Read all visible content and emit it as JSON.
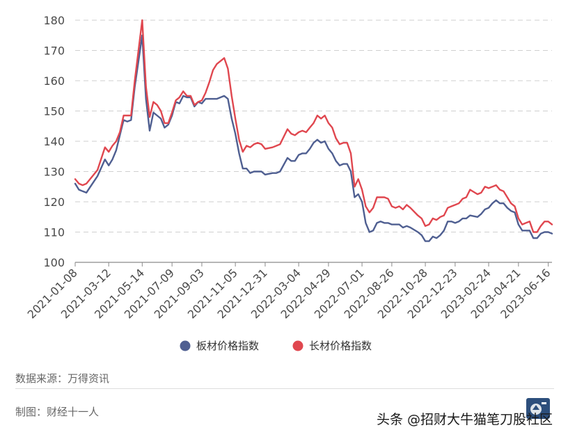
{
  "chart_data": {
    "type": "line",
    "title": "",
    "xlabel": "",
    "ylabel": "",
    "ylim": [
      100,
      180
    ],
    "yticks": [
      100,
      110,
      120,
      130,
      140,
      150,
      160,
      170,
      180
    ],
    "x_tick_labels": [
      "2021-01-08",
      "2021-03-12",
      "2021-05-14",
      "2021-07-09",
      "2021-09-03",
      "2021-11-05",
      "2021-12-31",
      "2022-03-04",
      "2022-04-29",
      "2022-07-01",
      "2022-08-26",
      "2022-10-28",
      "2022-12-23",
      "2023-02-24",
      "2023-04-21",
      "2023-06-16"
    ],
    "grid": "horizontal-dashed",
    "legend_position": "bottom",
    "colors": {
      "plate": "#4f5f91",
      "long": "#e0474f"
    },
    "series": [
      {
        "name": "板材价格指数",
        "color": "#4f5f91",
        "points": [
          [
            "2021-01-08",
            126.0
          ],
          [
            "2021-01-15",
            124.0
          ],
          [
            "2021-01-22",
            123.5
          ],
          [
            "2021-01-29",
            123.0
          ],
          [
            "2021-02-19",
            128.5
          ],
          [
            "2021-03-05",
            134.0
          ],
          [
            "2021-03-12",
            132.0
          ],
          [
            "2021-03-19",
            134.0
          ],
          [
            "2021-03-26",
            137.0
          ],
          [
            "2021-04-02",
            142.0
          ],
          [
            "2021-04-09",
            147.0
          ],
          [
            "2021-04-16",
            146.5
          ],
          [
            "2021-04-23",
            147.0
          ],
          [
            "2021-04-30",
            158.0
          ],
          [
            "2021-05-14",
            175.0
          ],
          [
            "2021-05-21",
            154.0
          ],
          [
            "2021-05-28",
            143.5
          ],
          [
            "2021-06-04",
            149.5
          ],
          [
            "2021-06-11",
            148.5
          ],
          [
            "2021-06-18",
            147.5
          ],
          [
            "2021-06-25",
            144.5
          ],
          [
            "2021-07-02",
            145.5
          ],
          [
            "2021-07-09",
            148.5
          ],
          [
            "2021-07-16",
            153.0
          ],
          [
            "2021-07-23",
            152.5
          ],
          [
            "2021-07-30",
            155.0
          ],
          [
            "2021-08-06",
            154.5
          ],
          [
            "2021-08-13",
            154.5
          ],
          [
            "2021-08-20",
            151.5
          ],
          [
            "2021-08-27",
            153.0
          ],
          [
            "2021-09-03",
            152.5
          ],
          [
            "2021-09-10",
            154.0
          ],
          [
            "2021-09-17",
            154.0
          ],
          [
            "2021-09-24",
            154.0
          ],
          [
            "2021-10-01",
            154.0
          ],
          [
            "2021-10-15",
            155.0
          ],
          [
            "2021-10-22",
            154.0
          ],
          [
            "2021-10-29",
            147.5
          ],
          [
            "2021-11-05",
            142.5
          ],
          [
            "2021-11-12",
            136.0
          ],
          [
            "2021-11-19",
            131.0
          ],
          [
            "2021-11-26",
            131.0
          ],
          [
            "2021-12-03",
            129.5
          ],
          [
            "2021-12-10",
            130.0
          ],
          [
            "2021-12-17",
            130.0
          ],
          [
            "2021-12-24",
            130.0
          ],
          [
            "2021-12-31",
            129.0
          ],
          [
            "2022-01-14",
            129.5
          ],
          [
            "2022-01-21",
            129.5
          ],
          [
            "2022-01-28",
            130.0
          ],
          [
            "2022-02-11",
            134.5
          ],
          [
            "2022-02-18",
            133.5
          ],
          [
            "2022-02-25",
            133.5
          ],
          [
            "2022-03-04",
            135.5
          ],
          [
            "2022-03-11",
            136.0
          ],
          [
            "2022-03-18",
            136.0
          ],
          [
            "2022-03-25",
            137.5
          ],
          [
            "2022-04-01",
            139.5
          ],
          [
            "2022-04-08",
            140.5
          ],
          [
            "2022-04-15",
            139.5
          ],
          [
            "2022-04-22",
            140.0
          ],
          [
            "2022-04-29",
            137.5
          ],
          [
            "2022-05-06",
            136.0
          ],
          [
            "2022-05-13",
            133.5
          ],
          [
            "2022-05-20",
            132.0
          ],
          [
            "2022-05-27",
            132.5
          ],
          [
            "2022-06-03",
            132.5
          ],
          [
            "2022-06-10",
            130.0
          ],
          [
            "2022-06-17",
            121.5
          ],
          [
            "2022-06-24",
            122.5
          ],
          [
            "2022-07-01",
            120.0
          ],
          [
            "2022-07-08",
            113.0
          ],
          [
            "2022-07-15",
            110.0
          ],
          [
            "2022-07-22",
            110.5
          ],
          [
            "2022-07-29",
            113.0
          ],
          [
            "2022-08-05",
            113.5
          ],
          [
            "2022-08-12",
            113.0
          ],
          [
            "2022-08-19",
            113.0
          ],
          [
            "2022-08-26",
            112.5
          ],
          [
            "2022-09-02",
            112.5
          ],
          [
            "2022-09-09",
            112.5
          ],
          [
            "2022-09-16",
            111.5
          ],
          [
            "2022-09-23",
            112.0
          ],
          [
            "2022-09-30",
            111.5
          ],
          [
            "2022-10-14",
            110.0
          ],
          [
            "2022-10-21",
            109.0
          ],
          [
            "2022-10-28",
            107.0
          ],
          [
            "2022-11-04",
            107.0
          ],
          [
            "2022-11-11",
            108.5
          ],
          [
            "2022-11-18",
            108.0
          ],
          [
            "2022-11-25",
            109.0
          ],
          [
            "2022-12-02",
            110.5
          ],
          [
            "2022-12-09",
            113.5
          ],
          [
            "2022-12-16",
            113.5
          ],
          [
            "2022-12-23",
            113.0
          ],
          [
            "2022-12-30",
            113.5
          ],
          [
            "2023-01-06",
            114.5
          ],
          [
            "2023-01-13",
            114.5
          ],
          [
            "2023-01-20",
            115.5
          ],
          [
            "2023-02-03",
            115.0
          ],
          [
            "2023-02-10",
            116.0
          ],
          [
            "2023-02-17",
            117.5
          ],
          [
            "2023-02-24",
            118.0
          ],
          [
            "2023-03-03",
            119.5
          ],
          [
            "2023-03-10",
            120.5
          ],
          [
            "2023-03-17",
            119.5
          ],
          [
            "2023-03-24",
            119.5
          ],
          [
            "2023-03-31",
            118.0
          ],
          [
            "2023-04-07",
            117.0
          ],
          [
            "2023-04-14",
            116.5
          ],
          [
            "2023-04-21",
            112.5
          ],
          [
            "2023-04-28",
            110.5
          ],
          [
            "2023-05-05",
            110.5
          ],
          [
            "2023-05-12",
            110.5
          ],
          [
            "2023-05-19",
            108.0
          ],
          [
            "2023-05-26",
            108.0
          ],
          [
            "2023-06-02",
            109.5
          ],
          [
            "2023-06-09",
            110.0
          ],
          [
            "2023-06-16",
            110.0
          ],
          [
            "2023-06-23",
            109.5
          ]
        ]
      },
      {
        "name": "长材价格指数",
        "color": "#e0474f",
        "points": [
          [
            "2021-01-08",
            127.5
          ],
          [
            "2021-01-15",
            126.0
          ],
          [
            "2021-01-22",
            125.5
          ],
          [
            "2021-01-29",
            126.0
          ],
          [
            "2021-02-19",
            130.5
          ],
          [
            "2021-03-05",
            138.0
          ],
          [
            "2021-03-12",
            136.5
          ],
          [
            "2021-03-19",
            138.5
          ],
          [
            "2021-03-26",
            140.0
          ],
          [
            "2021-04-02",
            143.0
          ],
          [
            "2021-04-09",
            148.5
          ],
          [
            "2021-04-16",
            148.5
          ],
          [
            "2021-04-23",
            148.5
          ],
          [
            "2021-04-30",
            160.0
          ],
          [
            "2021-05-14",
            180.0
          ],
          [
            "2021-05-21",
            158.0
          ],
          [
            "2021-05-28",
            148.0
          ],
          [
            "2021-06-04",
            153.0
          ],
          [
            "2021-06-11",
            152.0
          ],
          [
            "2021-06-18",
            150.0
          ],
          [
            "2021-06-25",
            146.0
          ],
          [
            "2021-07-02",
            146.0
          ],
          [
            "2021-07-09",
            149.5
          ],
          [
            "2021-07-16",
            153.5
          ],
          [
            "2021-07-23",
            154.5
          ],
          [
            "2021-07-30",
            156.5
          ],
          [
            "2021-08-06",
            155.0
          ],
          [
            "2021-08-13",
            155.0
          ],
          [
            "2021-08-20",
            152.0
          ],
          [
            "2021-08-27",
            153.0
          ],
          [
            "2021-09-03",
            153.5
          ],
          [
            "2021-09-10",
            156.0
          ],
          [
            "2021-09-17",
            159.5
          ],
          [
            "2021-09-24",
            163.5
          ],
          [
            "2021-10-01",
            165.5
          ],
          [
            "2021-10-15",
            167.5
          ],
          [
            "2021-10-22",
            164.0
          ],
          [
            "2021-10-29",
            155.0
          ],
          [
            "2021-11-05",
            147.5
          ],
          [
            "2021-11-12",
            140.5
          ],
          [
            "2021-11-19",
            136.5
          ],
          [
            "2021-11-26",
            138.5
          ],
          [
            "2021-12-03",
            138.0
          ],
          [
            "2021-12-10",
            139.0
          ],
          [
            "2021-12-17",
            139.5
          ],
          [
            "2021-12-24",
            139.0
          ],
          [
            "2021-12-31",
            137.5
          ],
          [
            "2022-01-14",
            138.0
          ],
          [
            "2022-01-21",
            138.5
          ],
          [
            "2022-01-28",
            139.0
          ],
          [
            "2022-02-11",
            144.0
          ],
          [
            "2022-02-18",
            142.5
          ],
          [
            "2022-02-25",
            142.0
          ],
          [
            "2022-03-04",
            143.0
          ],
          [
            "2022-03-11",
            143.5
          ],
          [
            "2022-03-18",
            143.0
          ],
          [
            "2022-03-25",
            144.5
          ],
          [
            "2022-04-01",
            146.0
          ],
          [
            "2022-04-08",
            148.5
          ],
          [
            "2022-04-15",
            147.5
          ],
          [
            "2022-04-22",
            148.5
          ],
          [
            "2022-04-29",
            146.0
          ],
          [
            "2022-05-06",
            144.5
          ],
          [
            "2022-05-13",
            141.0
          ],
          [
            "2022-05-20",
            139.0
          ],
          [
            "2022-05-27",
            139.5
          ],
          [
            "2022-06-03",
            139.5
          ],
          [
            "2022-06-10",
            136.0
          ],
          [
            "2022-06-17",
            125.0
          ],
          [
            "2022-06-24",
            127.5
          ],
          [
            "2022-07-01",
            124.0
          ],
          [
            "2022-07-08",
            118.5
          ],
          [
            "2022-07-15",
            116.5
          ],
          [
            "2022-07-22",
            118.0
          ],
          [
            "2022-07-29",
            121.5
          ],
          [
            "2022-08-05",
            121.5
          ],
          [
            "2022-08-12",
            121.5
          ],
          [
            "2022-08-19",
            121.0
          ],
          [
            "2022-08-26",
            118.5
          ],
          [
            "2022-09-02",
            118.0
          ],
          [
            "2022-09-09",
            118.5
          ],
          [
            "2022-09-16",
            117.5
          ],
          [
            "2022-09-23",
            119.0
          ],
          [
            "2022-09-30",
            118.0
          ],
          [
            "2022-10-14",
            115.5
          ],
          [
            "2022-10-21",
            114.5
          ],
          [
            "2022-10-28",
            112.0
          ],
          [
            "2022-11-04",
            112.5
          ],
          [
            "2022-11-11",
            114.5
          ],
          [
            "2022-11-18",
            114.0
          ],
          [
            "2022-11-25",
            115.0
          ],
          [
            "2022-12-02",
            115.5
          ],
          [
            "2022-12-09",
            118.0
          ],
          [
            "2022-12-16",
            118.5
          ],
          [
            "2022-12-23",
            119.0
          ],
          [
            "2022-12-30",
            119.5
          ],
          [
            "2023-01-06",
            121.0
          ],
          [
            "2023-01-13",
            121.5
          ],
          [
            "2023-01-20",
            124.0
          ],
          [
            "2023-02-03",
            122.5
          ],
          [
            "2023-02-10",
            123.0
          ],
          [
            "2023-02-17",
            125.0
          ],
          [
            "2023-02-24",
            124.5
          ],
          [
            "2023-03-03",
            125.0
          ],
          [
            "2023-03-10",
            125.5
          ],
          [
            "2023-03-17",
            124.0
          ],
          [
            "2023-03-24",
            123.5
          ],
          [
            "2023-03-31",
            121.5
          ],
          [
            "2023-04-07",
            119.5
          ],
          [
            "2023-04-14",
            118.5
          ],
          [
            "2023-04-21",
            114.5
          ],
          [
            "2023-04-28",
            112.5
          ],
          [
            "2023-05-05",
            113.0
          ],
          [
            "2023-05-12",
            113.5
          ],
          [
            "2023-05-19",
            110.0
          ],
          [
            "2023-05-26",
            110.0
          ],
          [
            "2023-06-02",
            112.0
          ],
          [
            "2023-06-09",
            113.5
          ],
          [
            "2023-06-16",
            113.5
          ],
          [
            "2023-06-23",
            112.5
          ]
        ]
      }
    ]
  },
  "footer": {
    "source": "数据来源：万得资讯",
    "author": "制图：财经十一人",
    "watermark": "头条 @招财大牛猫笔刀股社区"
  }
}
